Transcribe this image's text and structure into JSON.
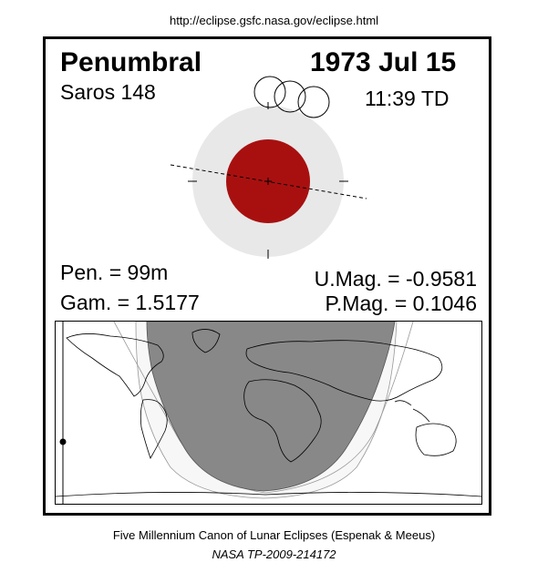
{
  "header": {
    "url": "http://eclipse.gsfc.nasa.gov/eclipse.html"
  },
  "eclipse": {
    "type": "Penumbral",
    "date": "1973 Jul 15",
    "saros": "Saros 148",
    "time": "11:39 TD",
    "pen": "Pen. =  99m",
    "gam": "Gam. = 1.5177",
    "umag": "U.Mag. = -0.9581",
    "pmag": "P.Mag. = 0.1046"
  },
  "footer": {
    "caption": "Five Millennium Canon of Lunar Eclipses (Espenak & Meeus)",
    "publication": "NASA TP-2009-214172"
  },
  "colors": {
    "penumbra": "#e8e8e8",
    "umbra": "#a81010",
    "night": "#888888",
    "penumbral_zone": "#f7f7f7"
  }
}
